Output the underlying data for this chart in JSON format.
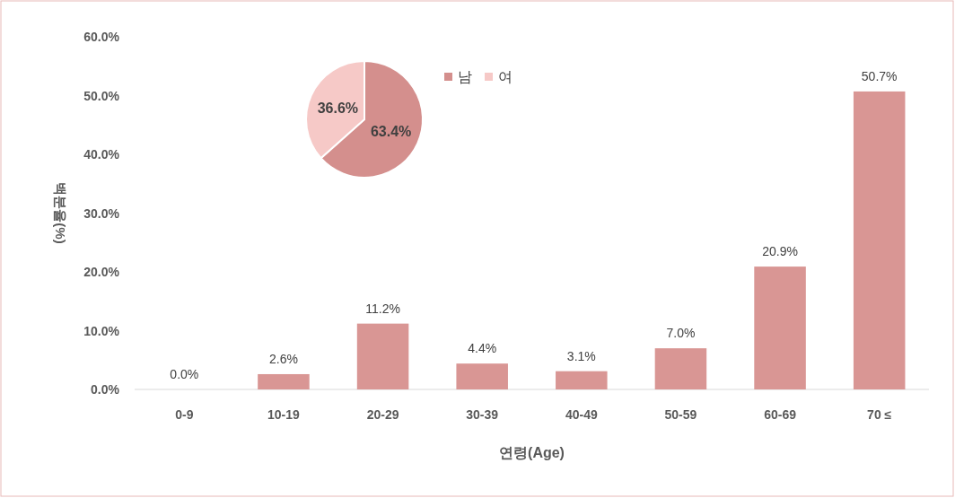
{
  "chart_data": [
    {
      "type": "bar",
      "xlabel": "연령(Age)",
      "ylabel": "백분율(%)",
      "categories": [
        "0-9",
        "10-19",
        "20-29",
        "30-39",
        "40-49",
        "50-59",
        "60-69",
        "70 ≤"
      ],
      "values": [
        0.0,
        2.6,
        11.2,
        4.4,
        3.1,
        7.0,
        20.9,
        50.7
      ],
      "value_labels": [
        "0.0%",
        "2.6%",
        "11.2%",
        "4.4%",
        "3.1%",
        "7.0%",
        "20.9%",
        "50.7%"
      ],
      "color": "#d99694",
      "ylim": [
        0,
        60
      ],
      "yticks": [
        {
          "value": 0,
          "label": "0.0%"
        },
        {
          "value": 10,
          "label": "10.0%"
        },
        {
          "value": 20,
          "label": "20.0%"
        },
        {
          "value": 30,
          "label": "30.0%"
        },
        {
          "value": 40,
          "label": "40.0%"
        },
        {
          "value": 50,
          "label": "50.0%"
        },
        {
          "value": 60,
          "label": "60.0%"
        }
      ],
      "grid": false
    },
    {
      "type": "pie",
      "categories": [
        "남",
        "여"
      ],
      "values": [
        63.4,
        36.6
      ],
      "colors": [
        "#d48f8d",
        "#f6c9c7"
      ],
      "value_labels": [
        "63.4%",
        "36.6%"
      ],
      "legend": "right"
    }
  ]
}
